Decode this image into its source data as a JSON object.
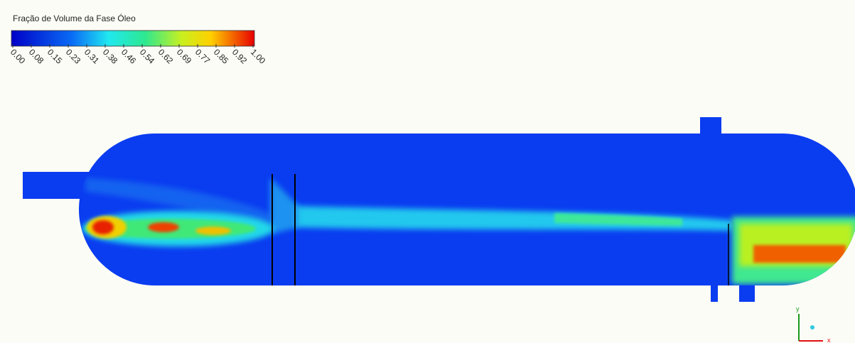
{
  "legend": {
    "title": "Fração de Volume da Fase Óleo",
    "ticks": [
      "0.00",
      "0.08",
      "0.15",
      "0.23",
      "0.31",
      "0.38",
      "0.46",
      "0.54",
      "0.62",
      "0.69",
      "0.77",
      "0.85",
      "0.92",
      "1.00"
    ]
  },
  "axes": {
    "y": "y",
    "x": "x"
  }
}
